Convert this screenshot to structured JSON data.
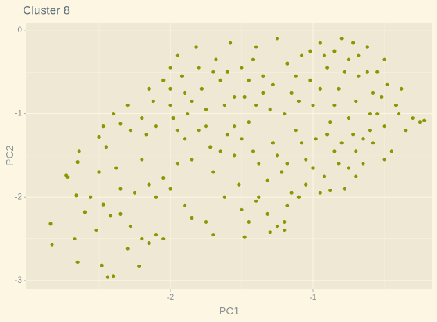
{
  "chart_data": {
    "type": "scatter",
    "title": "Cluster 8",
    "x_label": "PC1",
    "y_label": "PC2",
    "color": "#859900",
    "grid": true,
    "xlim": [
      -3.01,
      -0.165
    ],
    "ylim": [
      -3.1,
      0.09
    ],
    "xticks": [
      -2,
      -1
    ],
    "yticks": [
      0,
      -1,
      -2,
      -3
    ],
    "minor_xticks": [
      -2.5,
      -1.5,
      -0.5
    ],
    "minor_yticks": [
      -0.5,
      -1.5,
      -2.5
    ],
    "x": [
      -2.84,
      -2.83,
      -2.67,
      -2.65,
      -2.66,
      -2.64,
      -2.65,
      -2.73,
      -2.72,
      -2.6,
      -2.56,
      -2.52,
      -2.5,
      -2.47,
      -2.42,
      -2.48,
      -2.44,
      -2.4,
      -2.35,
      -2.3,
      -2.28,
      -2.22,
      -2.2,
      -2.15,
      -2.1,
      -2.05,
      -2.2,
      -2.15,
      -2.1,
      -2.25,
      -2.05,
      -2.0,
      -2.35,
      -2.38,
      -2.45,
      -2.5,
      -2.47,
      -2.4,
      -2.35,
      -2.3,
      -2.28,
      -2.2,
      -2.15,
      -2.17,
      -2.12,
      -2.1,
      -2.05,
      -2.0,
      -1.98,
      -1.95,
      -2.0,
      -1.92,
      -1.9,
      -1.88,
      -1.9,
      -1.85,
      -1.82,
      -1.8,
      -1.78,
      -1.75,
      -1.72,
      -1.7,
      -1.68,
      -1.65,
      -1.62,
      -1.6,
      -1.58,
      -1.55,
      -1.52,
      -1.5,
      -1.48,
      -1.45,
      -1.42,
      -1.4,
      -1.38,
      -1.35,
      -1.32,
      -1.3,
      -1.28,
      -1.25,
      -1.22,
      -1.2,
      -1.18,
      -1.15,
      -1.12,
      -1.1,
      -1.08,
      -1.05,
      -1.02,
      -1.0,
      -0.98,
      -0.95,
      -0.92,
      -0.9,
      -0.88,
      -0.85,
      -0.82,
      -0.8,
      -0.78,
      -0.75,
      -0.72,
      -0.7,
      -0.68,
      -0.65,
      -0.62,
      -0.6,
      -0.58,
      -0.55,
      -0.52,
      -0.5,
      -0.48,
      -0.45,
      -0.42,
      -0.4,
      -0.38,
      -0.35,
      -0.3,
      -0.25,
      -0.22,
      -1.9,
      -1.85,
      -1.75,
      -1.7,
      -1.62,
      -1.5,
      -1.48,
      -1.45,
      -1.4,
      -1.3,
      -1.25,
      -1.2,
      -1.18,
      -1.15,
      -1.05,
      -0.95,
      -0.88,
      -0.82,
      -0.75,
      -0.7,
      -0.65,
      -0.6,
      -0.55,
      -0.5,
      -1.95,
      -1.8,
      -1.65,
      -1.55,
      -1.42,
      -1.35,
      -1.28,
      -1.2,
      -1.1,
      -1.02,
      -0.92,
      -0.85,
      -0.78,
      -0.72,
      -0.68,
      -0.62,
      -0.58,
      -0.5,
      -2.0,
      -1.95,
      -1.85,
      -1.75,
      -1.7,
      -1.6,
      -1.55,
      -1.5,
      -1.45,
      -1.4,
      -1.38,
      -1.32,
      -1.25,
      -1.18,
      -1.12,
      -1.08,
      -1.0,
      -0.95,
      -0.9,
      -0.85,
      -0.8,
      -0.75,
      -0.7
    ],
    "values": [
      -2.32,
      -2.57,
      -2.5,
      -2.78,
      -1.98,
      -1.45,
      -1.58,
      -1.74,
      -1.76,
      -2.18,
      -2.0,
      -2.4,
      -1.7,
      -2.09,
      -2.22,
      -2.82,
      -2.96,
      -2.95,
      -2.2,
      -2.62,
      -2.35,
      -2.83,
      -2.5,
      -2.55,
      -2.45,
      -2.5,
      -1.55,
      -1.85,
      -2.0,
      -1.95,
      -1.77,
      -1.9,
      -1.9,
      -1.65,
      -1.4,
      -1.28,
      -1.15,
      -1.0,
      -1.12,
      -0.9,
      -1.2,
      -1.05,
      -0.7,
      -1.25,
      -0.85,
      -1.15,
      -0.6,
      -0.9,
      -1.05,
      -0.3,
      -0.45,
      -0.55,
      -0.75,
      -1.0,
      -1.3,
      -1.55,
      -0.2,
      -0.45,
      -0.7,
      -1.15,
      -1.4,
      -1.7,
      -0.35,
      -0.6,
      -0.9,
      -1.25,
      -0.15,
      -1.5,
      -1.85,
      -0.45,
      -0.8,
      -1.1,
      -1.45,
      -0.2,
      -2.0,
      -0.55,
      -2.2,
      -0.95,
      -1.35,
      -0.1,
      -1.7,
      -2.4,
      -0.4,
      -0.75,
      -1.2,
      -2.0,
      -0.3,
      -1.55,
      -0.6,
      -0.9,
      -1.3,
      -0.15,
      -1.75,
      -0.45,
      -1.1,
      -1.45,
      -0.7,
      -0.1,
      -1.9,
      -0.35,
      -1.25,
      -0.85,
      -0.55,
      -1.6,
      -0.2,
      -1.0,
      -1.35,
      -0.5,
      -0.8,
      -1.15,
      -0.65,
      -1.45,
      -0.9,
      -1.0,
      -0.7,
      -1.2,
      -1.05,
      -1.1,
      -1.08,
      -2.1,
      -2.25,
      -2.3,
      -2.45,
      -2.0,
      -2.15,
      -2.48,
      -2.3,
      -2.05,
      -2.42,
      -2.35,
      -2.3,
      -2.1,
      -1.95,
      -1.85,
      -1.95,
      -1.92,
      -1.6,
      -1.65,
      -1.45,
      -1.3,
      -1.2,
      -1.0,
      -1.55,
      -1.6,
      -1.2,
      -1.45,
      -1.15,
      -0.35,
      -0.75,
      -0.65,
      -1.0,
      -0.85,
      -0.25,
      -0.3,
      -0.25,
      -0.5,
      -0.15,
      -0.3,
      -0.5,
      -0.75,
      -0.35,
      -0.7,
      -1.2,
      -0.85,
      -0.95,
      -0.5,
      -0.5,
      -0.8,
      -1.3,
      -0.6,
      -0.9,
      -1.6,
      -1.8,
      -1.5,
      -1.6,
      -0.55,
      -1.35,
      -1.65,
      -0.7,
      -1.25,
      -0.9,
      -1.35,
      -1.05,
      -1.75
    ]
  }
}
